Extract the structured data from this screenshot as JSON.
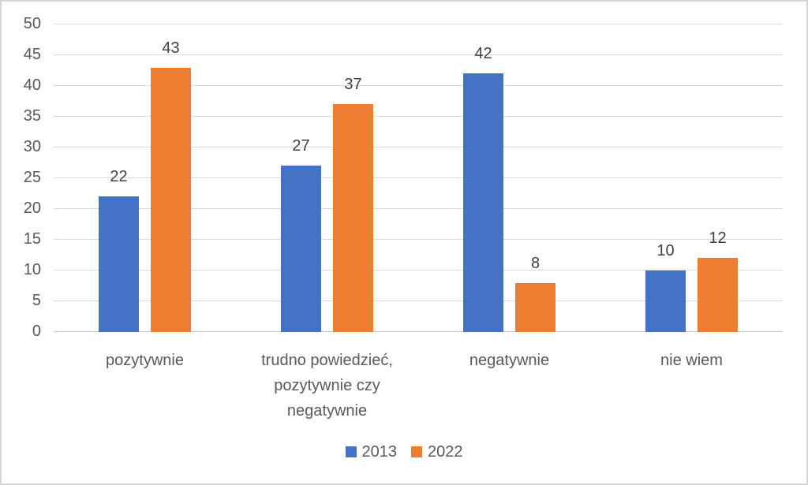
{
  "chart_data": {
    "type": "bar",
    "title": "",
    "xlabel": "",
    "ylabel": "",
    "categories": [
      "pozytywnie",
      "trudno powiedzieć,\npozytywnie czy\nnegatywnie",
      "negatywnie",
      "nie wiem"
    ],
    "series": [
      {
        "name": "2013",
        "color": "#4472C4",
        "values": [
          22,
          27,
          42,
          10
        ]
      },
      {
        "name": "2022",
        "color": "#ED7D31",
        "values": [
          43,
          37,
          8,
          12
        ]
      }
    ],
    "ylim": [
      0,
      50
    ],
    "ytick_step": 5,
    "ytick_labels": [
      "0",
      "5",
      "10",
      "15",
      "20",
      "25",
      "30",
      "35",
      "40",
      "45",
      "50"
    ],
    "grid": true,
    "legend_position": "bottom",
    "value_labels_shown": true
  },
  "colors": {
    "background": "#FFFFFF",
    "border": "#D6D6D6",
    "gridline": "#D9D9D9",
    "axis_line": "#C9C9C9",
    "tick_text": "#595959",
    "category_text": "#595959",
    "value_label_text": "#404040",
    "legend_text": "#595959",
    "series_2013": "#4472C4",
    "series_2022": "#ED7D31"
  }
}
